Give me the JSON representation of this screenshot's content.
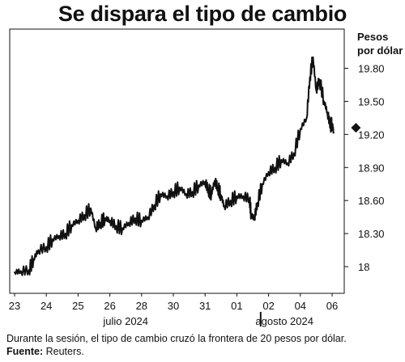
{
  "title": "Se dispara el tipo de cambio",
  "unit_label": [
    "Pesos",
    "por dólar"
  ],
  "footer": {
    "note": "Durante la sesión, el tipo de cambio cruzó la frontera de 20 pesos por dólar.",
    "source_label": "Fuente:",
    "source": "Reuters."
  },
  "chart_data": {
    "type": "line",
    "title": "Se dispara el tipo de cambio",
    "ylabel": "Pesos por dólar",
    "ylim": [
      17.85,
      20.15
    ],
    "yticks": [
      {
        "value": 18.0,
        "label": "18"
      },
      {
        "value": 18.3,
        "label": "18.30"
      },
      {
        "value": 18.6,
        "label": "18.60"
      },
      {
        "value": 18.9,
        "label": "18.90"
      },
      {
        "value": 19.2,
        "label": "19.20"
      },
      {
        "value": 19.5,
        "label": "19.50"
      },
      {
        "value": 19.8,
        "label": "19.80"
      }
    ],
    "xticks": [
      {
        "x": 0,
        "label": "23"
      },
      {
        "x": 1,
        "label": "24"
      },
      {
        "x": 2,
        "label": "25"
      },
      {
        "x": 3,
        "label": "26"
      },
      {
        "x": 4,
        "label": "28"
      },
      {
        "x": 5,
        "label": "30"
      },
      {
        "x": 6,
        "label": "31"
      },
      {
        "x": 7,
        "label": "01"
      },
      {
        "x": 8,
        "label": "02"
      },
      {
        "x": 9,
        "label": "04"
      },
      {
        "x": 10,
        "label": "06"
      }
    ],
    "month_labels": [
      {
        "x": 3.5,
        "label": "julio 2024"
      },
      {
        "x": 8.5,
        "label": "agosto 2024"
      }
    ],
    "month_divider_x": 7.75,
    "latest_marker": {
      "x": 10.75,
      "y": 19.26
    },
    "grid": false,
    "series": [
      {
        "values": [
          [
            0.0,
            17.95
          ],
          [
            0.2,
            17.96
          ],
          [
            0.45,
            17.97
          ],
          [
            0.6,
            18.07
          ],
          [
            0.75,
            18.15
          ],
          [
            1.0,
            18.18
          ],
          [
            1.2,
            18.25
          ],
          [
            1.4,
            18.28
          ],
          [
            1.6,
            18.3
          ],
          [
            1.8,
            18.38
          ],
          [
            2.0,
            18.42
          ],
          [
            2.2,
            18.47
          ],
          [
            2.4,
            18.53
          ],
          [
            2.55,
            18.35
          ],
          [
            2.7,
            18.4
          ],
          [
            2.85,
            18.44
          ],
          [
            3.0,
            18.42
          ],
          [
            3.2,
            18.37
          ],
          [
            3.4,
            18.35
          ],
          [
            3.6,
            18.4
          ],
          [
            3.8,
            18.44
          ],
          [
            4.0,
            18.42
          ],
          [
            4.2,
            18.45
          ],
          [
            4.4,
            18.56
          ],
          [
            4.6,
            18.66
          ],
          [
            4.8,
            18.64
          ],
          [
            5.0,
            18.68
          ],
          [
            5.2,
            18.72
          ],
          [
            5.4,
            18.66
          ],
          [
            5.6,
            18.68
          ],
          [
            5.8,
            18.74
          ],
          [
            6.0,
            18.77
          ],
          [
            6.1,
            18.7
          ],
          [
            6.2,
            18.66
          ],
          [
            6.3,
            18.78
          ],
          [
            6.4,
            18.72
          ],
          [
            6.5,
            18.65
          ],
          [
            6.6,
            18.55
          ],
          [
            6.8,
            18.6
          ],
          [
            7.0,
            18.64
          ],
          [
            7.2,
            18.64
          ],
          [
            7.4,
            18.62
          ],
          [
            7.45,
            18.47
          ],
          [
            7.55,
            18.44
          ],
          [
            7.65,
            18.58
          ],
          [
            7.8,
            18.75
          ],
          [
            8.0,
            18.86
          ],
          [
            8.2,
            18.9
          ],
          [
            8.4,
            18.97
          ],
          [
            8.6,
            18.94
          ],
          [
            8.8,
            19.03
          ],
          [
            9.0,
            19.25
          ],
          [
            9.2,
            19.35
          ],
          [
            9.3,
            19.72
          ],
          [
            9.4,
            19.9
          ],
          [
            9.5,
            19.6
          ],
          [
            9.6,
            19.7
          ],
          [
            9.75,
            19.5
          ],
          [
            9.85,
            19.4
          ],
          [
            9.95,
            19.28
          ],
          [
            10.0,
            19.3
          ],
          [
            10.05,
            19.22
          ]
        ]
      }
    ]
  }
}
